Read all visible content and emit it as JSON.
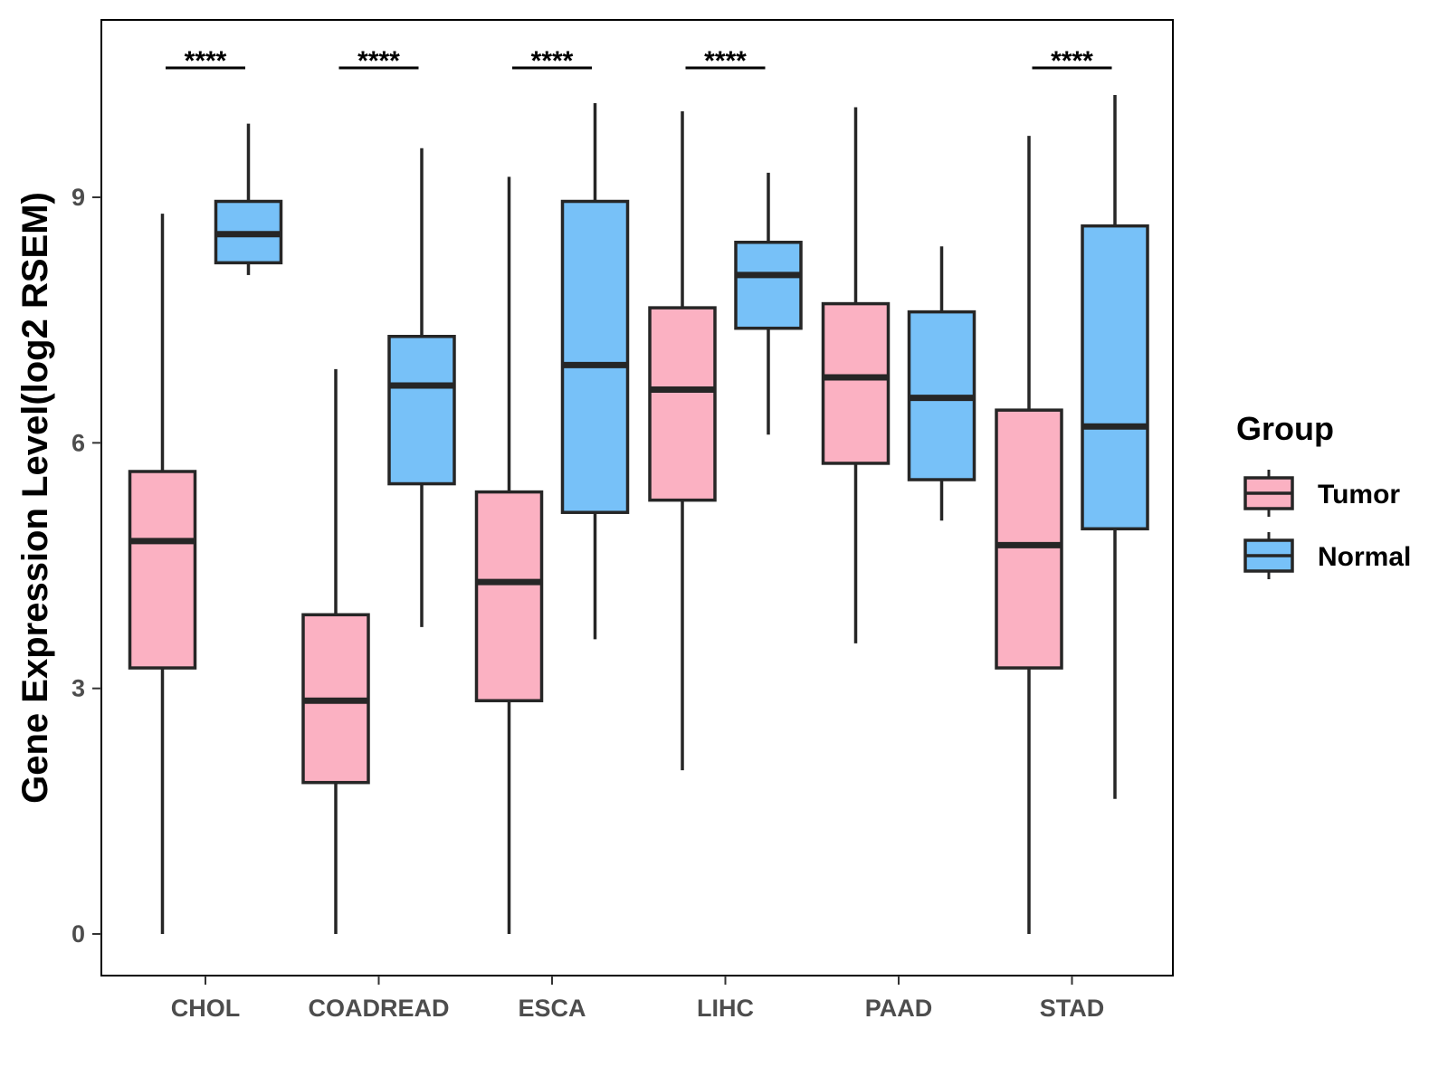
{
  "chart_data": {
    "type": "boxplot",
    "title": "",
    "xlabel": "",
    "ylabel": "Gene Expression Level(log2 RSEM)",
    "ylim": [
      -0.5,
      11.2
    ],
    "yticks": [
      0,
      3,
      6,
      9
    ],
    "categories": [
      "CHOL",
      "COADREAD",
      "ESCA",
      "LIHC",
      "PAAD",
      "STAD"
    ],
    "legend": {
      "title": "Group",
      "position": "right"
    },
    "series": [
      {
        "name": "Tumor",
        "color": "#FBB1C2",
        "boxes": [
          {
            "min": 0.0,
            "q1": 3.25,
            "median": 4.8,
            "q3": 5.65,
            "max": 8.8
          },
          {
            "min": 0.0,
            "q1": 1.85,
            "median": 2.85,
            "q3": 3.9,
            "max": 6.9
          },
          {
            "min": 0.0,
            "q1": 2.85,
            "median": 4.3,
            "q3": 5.4,
            "max": 9.25
          },
          {
            "min": 2.0,
            "q1": 5.3,
            "median": 6.65,
            "q3": 7.65,
            "max": 10.05
          },
          {
            "min": 3.55,
            "q1": 5.75,
            "median": 6.8,
            "q3": 7.7,
            "max": 10.1
          },
          {
            "min": 0.0,
            "q1": 3.25,
            "median": 4.75,
            "q3": 6.4,
            "max": 9.75
          }
        ]
      },
      {
        "name": "Normal",
        "color": "#77C1F8",
        "boxes": [
          {
            "min": 8.05,
            "q1": 8.2,
            "median": 8.55,
            "q3": 8.95,
            "max": 9.9
          },
          {
            "min": 3.75,
            "q1": 5.5,
            "median": 6.7,
            "q3": 7.3,
            "max": 9.6
          },
          {
            "min": 3.6,
            "q1": 5.15,
            "median": 6.95,
            "q3": 8.95,
            "max": 10.15
          },
          {
            "min": 6.1,
            "q1": 7.4,
            "median": 8.05,
            "q3": 8.45,
            "max": 9.3
          },
          {
            "min": 5.05,
            "q1": 5.55,
            "median": 6.55,
            "q3": 7.6,
            "max": 8.4
          },
          {
            "min": 1.65,
            "q1": 4.95,
            "median": 6.2,
            "q3": 8.65,
            "max": 10.25
          }
        ]
      }
    ],
    "significance": [
      {
        "category": "CHOL",
        "label": "****"
      },
      {
        "category": "COADREAD",
        "label": "****"
      },
      {
        "category": "ESCA",
        "label": "****"
      },
      {
        "category": "LIHC",
        "label": "****"
      },
      {
        "category": "PAAD",
        "label": ""
      },
      {
        "category": "STAD",
        "label": "****"
      }
    ]
  }
}
